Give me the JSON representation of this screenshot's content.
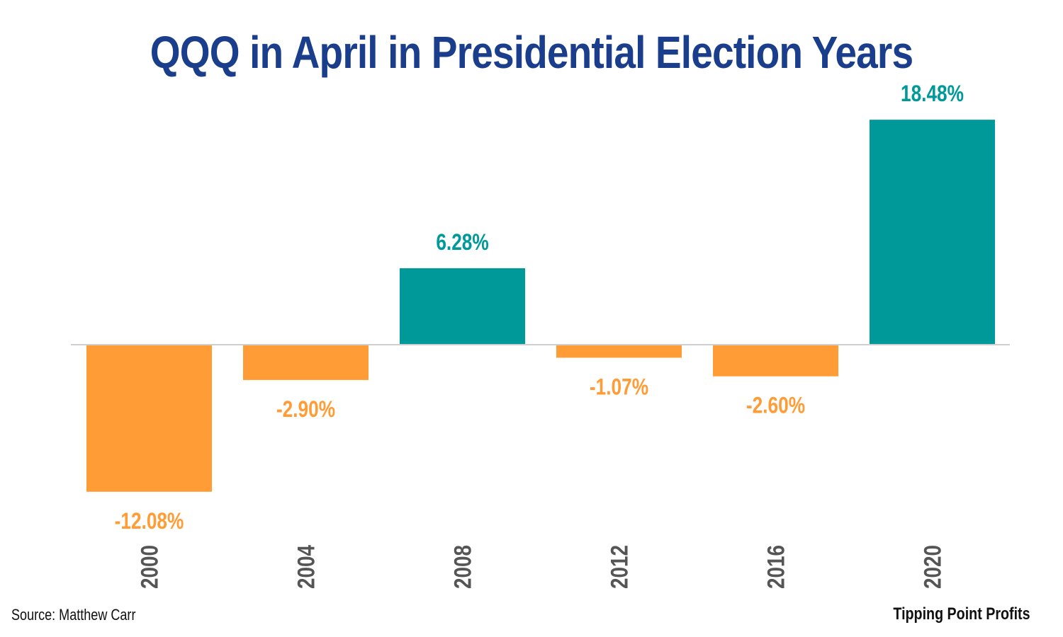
{
  "chart_data": {
    "type": "bar",
    "title": "QQQ in April in Presidential Election Years",
    "categories": [
      "2000",
      "2004",
      "2008",
      "2012",
      "2016",
      "2020"
    ],
    "values": [
      -12.08,
      -2.9,
      6.28,
      -1.07,
      -2.6,
      18.48
    ],
    "data_labels": [
      "-12.08%",
      "-2.90%",
      "6.28%",
      "-1.07%",
      "-2.60%",
      "18.48%"
    ],
    "xlabel": "",
    "ylabel": "",
    "ylim": [
      -13.8,
      18.48
    ],
    "grid": false,
    "legend": "none"
  },
  "source": "Source: Matthew Carr",
  "brand": "Tipping Point Profits",
  "colors": {
    "title": "#1a3e8c",
    "positive": "#00999a",
    "negative": "#ff9c35",
    "axis": "#cfcfcf",
    "tick_label": "#555555"
  }
}
